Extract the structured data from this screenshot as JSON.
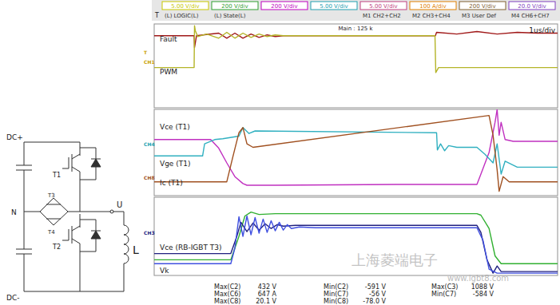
{
  "header": {
    "trigger": "T",
    "cells": [
      {
        "top": "5.00 V/div",
        "bottom": "(L) LOGIC(L)"
      },
      {
        "top": "200 V/div",
        "bottom": "(L) State(L)"
      },
      {
        "top": "200 V/div"
      },
      {
        "top": "5.00 V/div"
      },
      {
        "top": "5.00 V/div",
        "bottom": "M1 CH2+CH2"
      },
      {
        "top": "100 A/div",
        "bottom": "M2 CH3+CH4"
      },
      {
        "top": "200 V/div",
        "bottom": "M3 User Def"
      },
      {
        "top": "20.0 V/div",
        "bottom": "M4 CH6+CH7"
      }
    ]
  },
  "scope": {
    "time_base": "1us/div",
    "main": "Main : 125 k"
  },
  "circuit": {
    "labels": [
      "DC+",
      "N",
      "T1",
      "T3",
      "T4",
      "U",
      "L",
      "T2",
      "DC-"
    ]
  },
  "chart_data": [
    {
      "type": "line",
      "xlim": [
        0,
        10
      ],
      "ylim": [
        0,
        10
      ],
      "tick_labels": false,
      "grid": false,
      "annotations": [
        "T",
        "CH1"
      ],
      "series": [
        {
          "name": "Fault",
          "color": "#a01818",
          "x": [
            0,
            0.99,
            1.0,
            1.05,
            1.6,
            1.8,
            2.0,
            2.2,
            2.4,
            2.6,
            2.8,
            3.0,
            3.2,
            6.97,
            7.0,
            7.5,
            8.0,
            8.5,
            9.0,
            9.5,
            10
          ],
          "values": [
            8.6,
            8.6,
            7.2,
            8.6,
            8.9,
            8.3,
            8.9,
            8.3,
            8.8,
            8.4,
            8.7,
            8.5,
            8.6,
            8.6,
            9.0,
            8.8,
            9.1,
            8.8,
            9.0,
            8.9,
            8.9
          ]
        },
        {
          "name": "PWM",
          "color": "#b4b428",
          "x": [
            0,
            0.99,
            1.0,
            1.02,
            1.08,
            1.3,
            1.6,
            1.8,
            2.0,
            2.2,
            2.4,
            2.6,
            2.8,
            3.0,
            3.2,
            6.96,
            6.98,
            7.05,
            10
          ],
          "values": [
            4.8,
            4.8,
            9.8,
            9.2,
            8.5,
            8.8,
            8.3,
            9.0,
            8.3,
            8.9,
            8.4,
            8.8,
            8.5,
            8.7,
            8.6,
            8.6,
            4.2,
            4.8,
            4.8
          ]
        }
      ]
    },
    {
      "type": "line",
      "xlim": [
        0,
        10
      ],
      "ylim": [
        0,
        10
      ],
      "tick_labels": false,
      "grid": false,
      "annotations": [
        "CH4",
        "CH8"
      ],
      "series": [
        {
          "name": "Vce (T1)",
          "color": "#c030c0",
          "x": [
            0,
            1.0,
            1.4,
            1.6,
            1.8,
            2.0,
            2.2,
            2.3,
            3.0,
            6.0,
            8.0,
            8.1,
            8.3,
            8.45,
            8.5,
            8.55,
            8.6,
            8.7,
            8.9,
            10
          ],
          "values": [
            6.5,
            6.5,
            6.5,
            5.5,
            3.8,
            2.2,
            1.4,
            1.2,
            1.2,
            1.3,
            1.3,
            2.5,
            5.0,
            8.5,
            10,
            7.0,
            8.5,
            6.5,
            6.3,
            6.3
          ]
        },
        {
          "name": "Vge (T1)",
          "color": "#30b0c0",
          "x": [
            0,
            1.2,
            1.25,
            1.5,
            1.7,
            2.1,
            2.2,
            2.35,
            2.5,
            7.0,
            7.02,
            7.1,
            7.2,
            7.3,
            7.5,
            8.0,
            8.2,
            8.4,
            8.5,
            8.6,
            8.7,
            9.0,
            10
          ],
          "values": [
            4.6,
            4.6,
            6.0,
            6.5,
            6.6,
            6.9,
            7.9,
            7.2,
            7.5,
            7.3,
            5.3,
            6.0,
            5.2,
            5.8,
            5.6,
            5.6,
            4.8,
            3.8,
            6.0,
            2.5,
            4.0,
            3.3,
            3.3
          ]
        },
        {
          "name": "Ic (T1)",
          "color": "#a05020",
          "x": [
            0,
            1.8,
            1.95,
            2.1,
            2.2,
            2.3,
            2.45,
            8.3,
            8.4,
            8.5,
            8.55,
            8.65,
            8.8,
            10
          ],
          "values": [
            1.6,
            1.6,
            4.5,
            7.3,
            7.9,
            6.0,
            5.6,
            9.3,
            7.0,
            3.0,
            0.5,
            2.2,
            1.6,
            1.6
          ]
        }
      ]
    },
    {
      "type": "line",
      "xlim": [
        0,
        10
      ],
      "ylim": [
        0,
        10
      ],
      "tick_labels": false,
      "grid": false,
      "annotations": [
        "CH3"
      ],
      "series": [
        {
          "name": "Vce (RB-IGBT T3)",
          "color": "#30b030",
          "x": [
            0,
            1.9,
            2.1,
            2.25,
            2.4,
            2.6,
            3.0,
            4.0,
            8.0,
            8.1,
            8.3,
            8.45,
            8.6,
            10
          ],
          "values": [
            2.0,
            2.0,
            5.0,
            7.6,
            8.1,
            7.8,
            7.9,
            7.9,
            7.9,
            7.7,
            6.0,
            2.5,
            1.5,
            1.5
          ]
        },
        {
          "color": "#202080",
          "x": [
            0,
            1.9,
            2.05,
            2.15,
            2.3,
            2.45,
            2.6,
            2.75,
            2.9,
            3.05,
            3.2,
            3.5,
            8.0,
            8.1,
            8.25,
            8.4,
            8.5,
            8.6,
            10
          ],
          "values": [
            2.8,
            2.8,
            5.0,
            6.8,
            5.6,
            6.7,
            5.8,
            6.6,
            6.0,
            6.5,
            6.3,
            6.4,
            6.4,
            5.5,
            2.0,
            0.3,
            1.2,
            0.5,
            0.5
          ]
        },
        {
          "name": "Vk",
          "color": "#4050e0",
          "x": [
            0,
            1.9,
            2.0,
            2.1,
            2.2,
            2.3,
            2.4,
            2.5,
            2.6,
            2.7,
            2.8,
            2.9,
            3.0,
            3.1,
            3.2,
            3.3,
            3.4,
            3.6,
            4.0,
            8.0,
            8.15,
            8.3,
            8.5,
            10
          ],
          "values": [
            1.5,
            1.5,
            3.5,
            7.5,
            5.0,
            7.6,
            5.2,
            7.4,
            5.4,
            7.2,
            5.5,
            7.0,
            5.7,
            6.8,
            5.8,
            6.5,
            6.0,
            6.2,
            6.1,
            6.1,
            4.5,
            0.8,
            0.3,
            0.3
          ]
        }
      ]
    }
  ],
  "measurements": [
    [
      {
        "label": "Max(C2)",
        "value": "432 V"
      },
      {
        "label": "Min(C2)",
        "value": "-591 V"
      },
      {
        "label": "Max(C3)",
        "value": "1088 V"
      }
    ],
    [
      {
        "label": "Max(C6)",
        "value": "647 A"
      },
      {
        "label": "Min(C7)",
        "value": "-56 V"
      },
      {
        "label": "Min(C7)",
        "value": "-584 V"
      }
    ],
    [
      {
        "label": "Max(C8)",
        "value": "20.1 V"
      },
      {
        "label": "Min(C8)",
        "value": "-78.0 V"
      }
    ]
  ],
  "watermark": [
    "上海菱端电子",
    "www.igbt8.com"
  ]
}
